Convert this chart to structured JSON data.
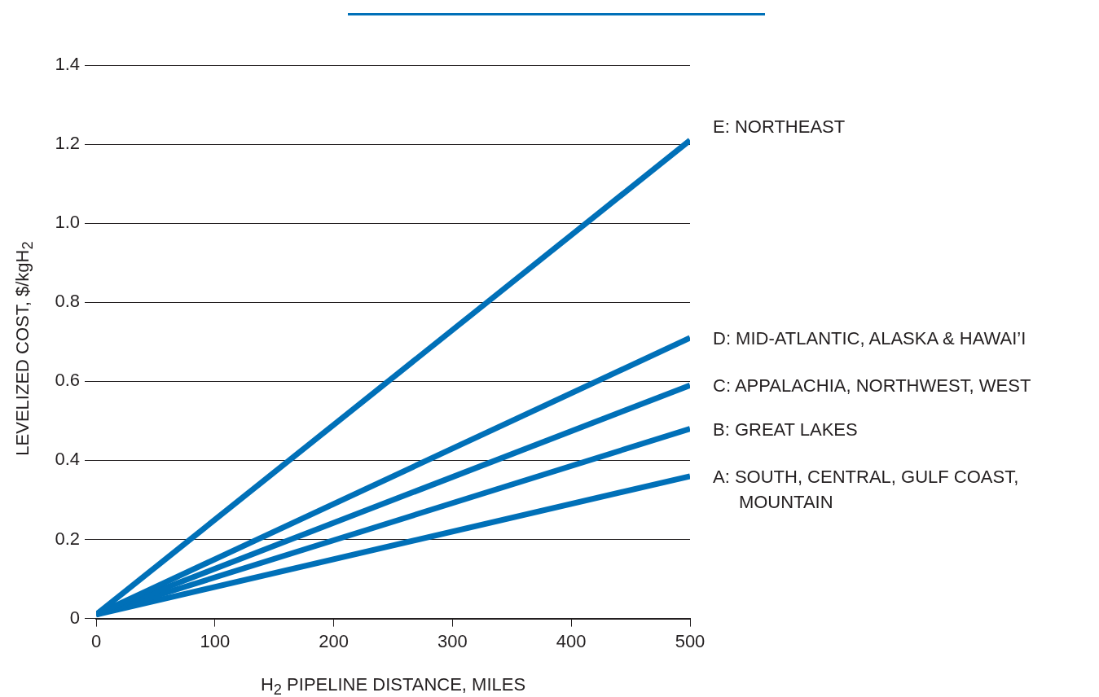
{
  "chart_data": {
    "type": "line",
    "xlabel": "H$_{2}$ PIPELINE DISTANCE, MILES",
    "ylabel": "LEVELIZED COST, $/kgH$_{2}$",
    "x": [
      0,
      500
    ],
    "xlim": [
      0,
      500
    ],
    "xticks": [
      0,
      100,
      200,
      300,
      400,
      500
    ],
    "ylim": [
      0,
      1.4
    ],
    "yticks": [
      0,
      0.2,
      0.4,
      0.6,
      0.8,
      {
        "value": 1,
        "label": "1.0"
      },
      1.2,
      1.4
    ],
    "grid": "y",
    "legend": false,
    "marker": "none",
    "line_style": "solid",
    "series": [
      {
        "name": "E: NORTHEAST",
        "color": "#0070b8",
        "values": [
          0.01,
          1.21
        ]
      },
      {
        "name": "D: MID-ATLANTIC, ALASKA & HAWAI’I",
        "color": "#0070b8",
        "values": [
          0.01,
          0.71
        ]
      },
      {
        "name": "C: APPALACHIA, NORTHWEST, WEST",
        "color": "#0070b8",
        "values": [
          0.01,
          0.59
        ]
      },
      {
        "name": "B: GREAT LAKES",
        "color": "#0070b8",
        "values": [
          0.01,
          0.48
        ]
      },
      {
        "name": "A: SOUTH, CENTRAL, GULF COAST, MOUNTAIN",
        "color": "#0070b8",
        "values": [
          0.01,
          0.36
        ]
      }
    ]
  }
}
